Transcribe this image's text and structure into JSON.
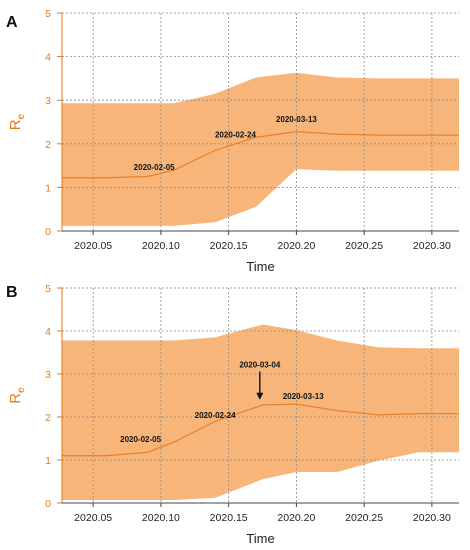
{
  "chart_data": [
    {
      "panel_label": "A",
      "type": "area",
      "xlabel": "Time",
      "ylabel": "R",
      "ylabel_subscript": "e",
      "x_ticks": [
        "2020.05",
        "2020.10",
        "2020.15",
        "2020.20",
        "2020.25",
        "2020.30"
      ],
      "y_ticks": [
        "0",
        "1",
        "2",
        "3",
        "4",
        "5"
      ],
      "xlim": [
        2020.027,
        2020.32
      ],
      "ylim": [
        0,
        5
      ],
      "grid": true,
      "colors": {
        "band": "#f8b57a",
        "line": "#e8822c",
        "axis_text": "#e07a1a"
      },
      "series": [
        {
          "x": [
            2020.027,
            2020.06,
            2020.09,
            2020.11,
            2020.14,
            2020.17,
            2020.2,
            2020.23,
            2020.26,
            2020.29,
            2020.32
          ],
          "mean": [
            1.22,
            1.22,
            1.25,
            1.4,
            1.85,
            2.15,
            2.28,
            2.22,
            2.2,
            2.2,
            2.2
          ],
          "lower": [
            0.12,
            0.12,
            0.12,
            0.12,
            0.2,
            0.55,
            1.42,
            1.38,
            1.38,
            1.38,
            1.38
          ],
          "upper": [
            2.93,
            2.93,
            2.93,
            2.93,
            3.15,
            3.52,
            3.63,
            3.52,
            3.5,
            3.5,
            3.5
          ]
        }
      ],
      "annotations": [
        {
          "text": "2020-02-05",
          "x": 2020.095,
          "y": 1.4,
          "arrow": false
        },
        {
          "text": "2020-02-24",
          "x": 2020.155,
          "y": 2.14,
          "arrow": false
        },
        {
          "text": "2020-03-13",
          "x": 2020.2,
          "y": 2.5,
          "arrow": false
        }
      ]
    },
    {
      "panel_label": "B",
      "type": "area",
      "xlabel": "Time",
      "ylabel": "R",
      "ylabel_subscript": "e",
      "x_ticks": [
        "2020.05",
        "2020.10",
        "2020.15",
        "2020.20",
        "2020.25",
        "2020.30"
      ],
      "y_ticks": [
        "0",
        "1",
        "2",
        "3",
        "4",
        "5"
      ],
      "xlim": [
        2020.027,
        2020.32
      ],
      "ylim": [
        0,
        5
      ],
      "grid": true,
      "colors": {
        "band": "#f8b57a",
        "line": "#e8822c",
        "axis_text": "#e07a1a"
      },
      "series": [
        {
          "x": [
            2020.027,
            2020.06,
            2020.09,
            2020.11,
            2020.14,
            2020.175,
            2020.2,
            2020.23,
            2020.26,
            2020.29,
            2020.32
          ],
          "mean": [
            1.1,
            1.1,
            1.18,
            1.42,
            1.9,
            2.28,
            2.3,
            2.15,
            2.05,
            2.08,
            2.08
          ],
          "lower": [
            0.07,
            0.07,
            0.07,
            0.07,
            0.12,
            0.55,
            0.72,
            0.72,
            0.98,
            1.18,
            1.18
          ],
          "upper": [
            3.78,
            3.78,
            3.78,
            3.78,
            3.85,
            4.15,
            4.02,
            3.78,
            3.62,
            3.6,
            3.6
          ]
        }
      ],
      "annotations": [
        {
          "text": "2020-02-05",
          "x": 2020.085,
          "y": 1.42,
          "arrow": false
        },
        {
          "text": "2020-02-24",
          "x": 2020.14,
          "y": 1.98,
          "arrow": false
        },
        {
          "text": "2020-03-04",
          "x": 2020.173,
          "y": 3.15,
          "arrow": true,
          "arrow_to_y": 2.4
        },
        {
          "text": "2020-03-13",
          "x": 2020.205,
          "y": 2.42,
          "arrow": false
        }
      ]
    }
  ]
}
